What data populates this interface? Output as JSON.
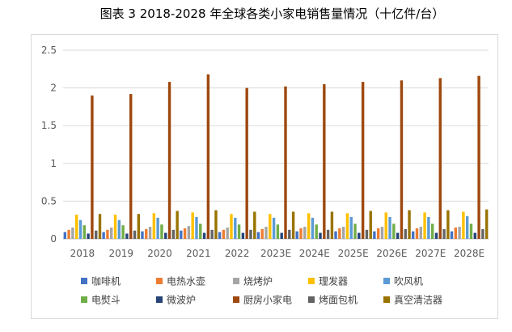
{
  "chart_data": {
    "type": "bar",
    "title": "图表 3 2018-2028 年全球各类小家电销售量情况（十亿件/台）",
    "categories": [
      "2018",
      "2019",
      "2020",
      "2021",
      "2022",
      "2023E",
      "2024E",
      "2025E",
      "2026E",
      "2027E",
      "2028E"
    ],
    "ylim": [
      0,
      2.5
    ],
    "yticks": [
      "0",
      "0.5",
      "1",
      "1.5",
      "2",
      "2.5"
    ],
    "grid": true,
    "legend_position": "bottom",
    "series": [
      {
        "name": "咖啡机",
        "color": "#4472C4",
        "values": [
          0.09,
          0.09,
          0.1,
          0.11,
          0.09,
          0.09,
          0.1,
          0.1,
          0.1,
          0.1,
          0.1
        ]
      },
      {
        "name": "电热水壶",
        "color": "#ED7D31",
        "values": [
          0.12,
          0.12,
          0.13,
          0.14,
          0.12,
          0.13,
          0.14,
          0.14,
          0.14,
          0.14,
          0.15
        ]
      },
      {
        "name": "烧烤炉",
        "color": "#A5A5A5",
        "values": [
          0.15,
          0.15,
          0.16,
          0.17,
          0.15,
          0.16,
          0.16,
          0.16,
          0.16,
          0.16,
          0.16
        ]
      },
      {
        "name": "理发器",
        "color": "#FFC000",
        "values": [
          0.32,
          0.32,
          0.34,
          0.35,
          0.33,
          0.33,
          0.34,
          0.34,
          0.35,
          0.35,
          0.36
        ]
      },
      {
        "name": "吹风机",
        "color": "#5B9BD5",
        "values": [
          0.25,
          0.25,
          0.28,
          0.29,
          0.28,
          0.28,
          0.28,
          0.29,
          0.29,
          0.29,
          0.3
        ]
      },
      {
        "name": "电熨斗",
        "color": "#70AD47",
        "values": [
          0.18,
          0.18,
          0.19,
          0.2,
          0.19,
          0.19,
          0.19,
          0.2,
          0.2,
          0.2,
          0.2
        ]
      },
      {
        "name": "微波炉",
        "color": "#264478",
        "values": [
          0.07,
          0.07,
          0.08,
          0.08,
          0.08,
          0.08,
          0.08,
          0.08,
          0.08,
          0.08,
          0.08
        ]
      },
      {
        "name": "厨房小家电",
        "color": "#9E480E",
        "values": [
          1.9,
          1.92,
          2.08,
          2.18,
          2.0,
          2.02,
          2.05,
          2.08,
          2.1,
          2.13,
          2.16
        ]
      },
      {
        "name": "烤面包机",
        "color": "#636363",
        "values": [
          0.11,
          0.11,
          0.12,
          0.12,
          0.12,
          0.12,
          0.12,
          0.12,
          0.13,
          0.13,
          0.13
        ]
      },
      {
        "name": "真空清洁器",
        "color": "#997300",
        "values": [
          0.33,
          0.33,
          0.37,
          0.38,
          0.36,
          0.36,
          0.36,
          0.37,
          0.38,
          0.38,
          0.39
        ]
      }
    ]
  }
}
